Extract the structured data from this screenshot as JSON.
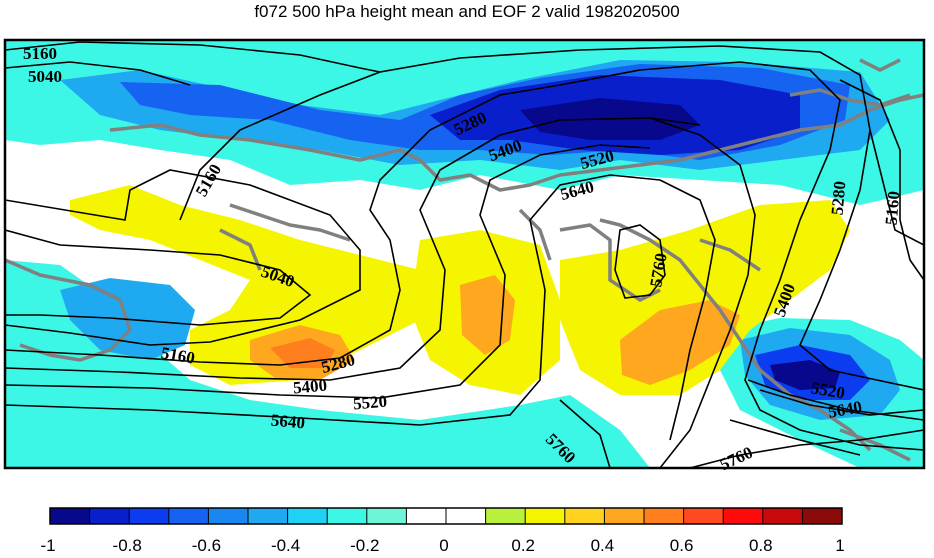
{
  "title": "f072 500 hPa height mean and EOF 2 valid 1982020500",
  "colorbar": {
    "colors": [
      "#08088c",
      "#0a1fcc",
      "#0b3cf0",
      "#1563f0",
      "#1a86f0",
      "#1fa9f0",
      "#1fd2f5",
      "#3df7e6",
      "#6cf5d6",
      "#ffffff",
      "#ffffff",
      "#b8f03c",
      "#f5f500",
      "#ffd21f",
      "#ffa81f",
      "#ff7f1f",
      "#ff4a1f",
      "#ff0a0a",
      "#c80a0a",
      "#8c0a0a"
    ],
    "tick_labels": [
      "-1",
      "-0.8",
      "-0.6",
      "-0.4",
      "-0.2",
      "0",
      "0.2",
      "0.4",
      "0.6",
      "0.8",
      "1"
    ]
  },
  "contour_levels": [
    "5040",
    "5160",
    "5280",
    "5400",
    "5520",
    "5640",
    "5760"
  ],
  "contour_labels": [
    {
      "text": "5160",
      "rotate": 0
    },
    {
      "text": "5040",
      "rotate": 0
    },
    {
      "text": "5280",
      "rotate": -25
    },
    {
      "text": "5400",
      "rotate": -20
    },
    {
      "text": "5520",
      "rotate": -15
    },
    {
      "text": "5640",
      "rotate": -15
    },
    {
      "text": "5160",
      "rotate": -60
    },
    {
      "text": "5040",
      "rotate": 20
    },
    {
      "text": "5160",
      "rotate": 10
    },
    {
      "text": "5280",
      "rotate": -15
    },
    {
      "text": "5400",
      "rotate": -5
    },
    {
      "text": "5520",
      "rotate": -5
    },
    {
      "text": "5640",
      "rotate": 5
    },
    {
      "text": "5760",
      "rotate": 45
    },
    {
      "text": "5760",
      "rotate": -80
    },
    {
      "text": "5400",
      "rotate": -70
    },
    {
      "text": "5280",
      "rotate": -85
    },
    {
      "text": "5160",
      "rotate": -85
    },
    {
      "text": "5520",
      "rotate": 10
    },
    {
      "text": "5640",
      "rotate": -10
    },
    {
      "text": "5760",
      "rotate": -25
    }
  ]
}
